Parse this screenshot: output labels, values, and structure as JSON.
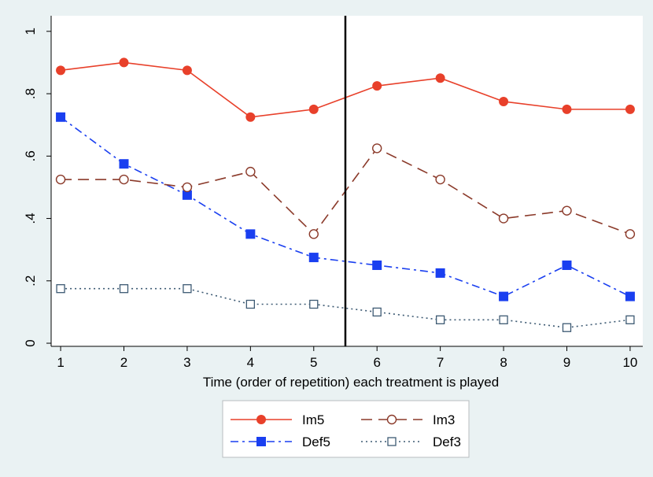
{
  "chart_data": {
    "type": "line",
    "title": "",
    "xlabel": "Time (order of repetition) each treatment is played",
    "ylabel": "",
    "x": [
      1,
      2,
      3,
      4,
      5,
      6,
      7,
      8,
      9,
      10
    ],
    "xlim": [
      0.85,
      10.2
    ],
    "ylim": [
      -0.01,
      1.05
    ],
    "x_ticks": [
      "1",
      "2",
      "3",
      "4",
      "5",
      "6",
      "7",
      "8",
      "9",
      "10"
    ],
    "y_ticks": [
      {
        "value": 0,
        "label": "0"
      },
      {
        "value": 0.2,
        "label": ".2"
      },
      {
        "value": 0.4,
        "label": ".4"
      },
      {
        "value": 0.6,
        "label": ".6"
      },
      {
        "value": 0.8,
        "label": ".8"
      },
      {
        "value": 1,
        "label": "1"
      }
    ],
    "vertical_line_x": 5.5,
    "grid": false,
    "legend_position": "bottom",
    "series": [
      {
        "name": "Im5",
        "color": "#e8402a",
        "marker": "filled-circle",
        "line": "solid",
        "values": [
          0.875,
          0.9,
          0.875,
          0.725,
          0.75,
          0.825,
          0.85,
          0.775,
          0.75,
          0.75
        ]
      },
      {
        "name": "Im3",
        "color": "#8b3a2a",
        "marker": "hollow-circle",
        "line": "dashed",
        "values": [
          0.525,
          0.525,
          0.5,
          0.55,
          0.35,
          0.625,
          0.525,
          0.4,
          0.425,
          0.35
        ]
      },
      {
        "name": "Def5",
        "color": "#1a3ff0",
        "marker": "filled-square",
        "line": "dash-dot",
        "values": [
          0.725,
          0.575,
          0.475,
          0.35,
          0.275,
          0.25,
          0.225,
          0.15,
          0.25,
          0.15
        ]
      },
      {
        "name": "Def3",
        "color": "#3d5a73",
        "marker": "hollow-square",
        "line": "dotted",
        "values": [
          0.175,
          0.175,
          0.175,
          0.125,
          0.125,
          0.1,
          0.075,
          0.075,
          0.05,
          0.075
        ]
      }
    ]
  }
}
